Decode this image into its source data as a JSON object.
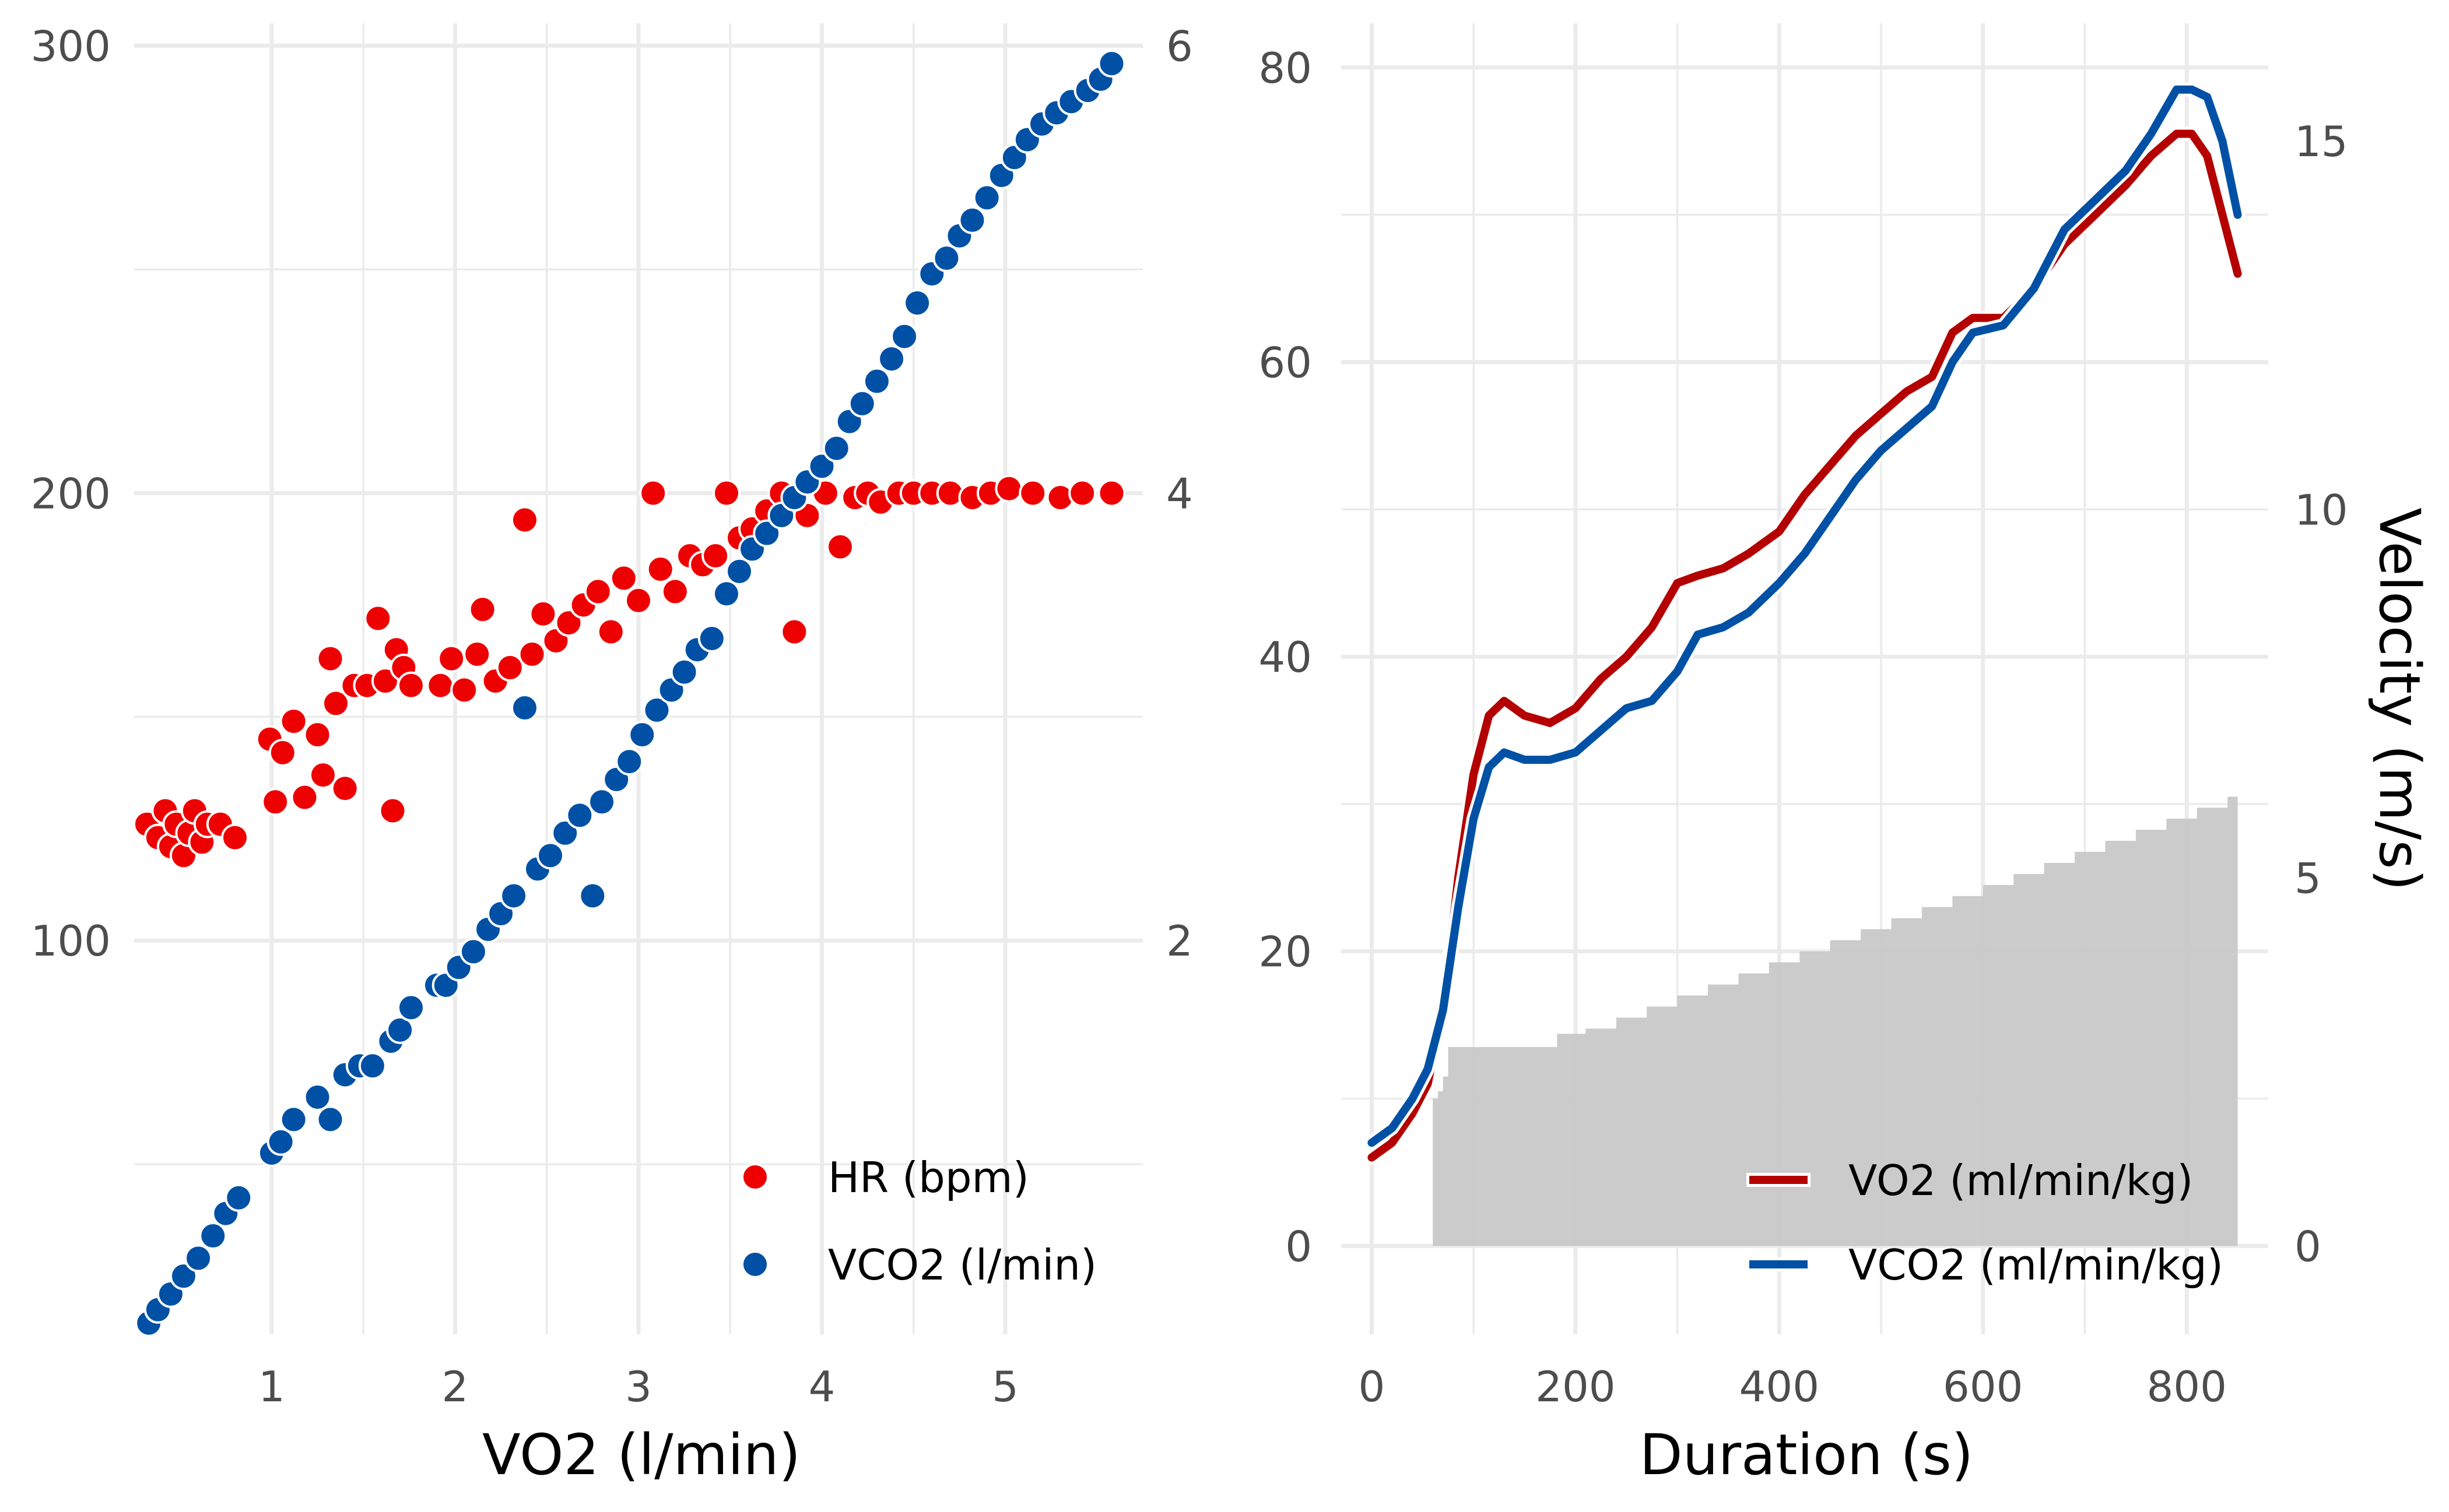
{
  "colors": {
    "hr": "#EE0000",
    "vco2_dots": "#0051A5",
    "vo2_line": "#B40000",
    "vco2_line": "#0051A5",
    "velocity_area": "#C8C8C8"
  },
  "chart_data": [
    {
      "type": "scatter",
      "xlabel": "VO2 (l/min)",
      "ylabel": "",
      "y2label": "",
      "xlim": [
        0.25,
        5.75
      ],
      "ylim": [
        12,
        305
      ],
      "y2lim": [
        0.24,
        6.1
      ],
      "xticks": [
        "1",
        "2",
        "3",
        "4",
        "5"
      ],
      "yticks": [
        "100",
        "200",
        "300"
      ],
      "y2ticks": [
        "2",
        "4",
        "6"
      ],
      "grid": true,
      "legend_position": "bottom-right",
      "series": [
        {
          "name": "HR (bpm)",
          "axis": "left",
          "color": "#EE0000",
          "points": [
            [
              0.32,
              126
            ],
            [
              0.38,
              123
            ],
            [
              0.42,
              129
            ],
            [
              0.45,
              121
            ],
            [
              0.48,
              126
            ],
            [
              0.52,
              119
            ],
            [
              0.55,
              124
            ],
            [
              0.58,
              129
            ],
            [
              0.62,
              122
            ],
            [
              0.65,
              126
            ],
            [
              0.72,
              126
            ],
            [
              0.8,
              123
            ],
            [
              0.99,
              145
            ],
            [
              1.02,
              131
            ],
            [
              1.06,
              142
            ],
            [
              1.12,
              149
            ],
            [
              1.18,
              132
            ],
            [
              1.25,
              146
            ],
            [
              1.28,
              137
            ],
            [
              1.32,
              163
            ],
            [
              1.35,
              153
            ],
            [
              1.4,
              134
            ],
            [
              1.45,
              157
            ],
            [
              1.52,
              157
            ],
            [
              1.58,
              172
            ],
            [
              1.62,
              158
            ],
            [
              1.66,
              129
            ],
            [
              1.68,
              165
            ],
            [
              1.72,
              161
            ],
            [
              1.76,
              157
            ],
            [
              1.92,
              157
            ],
            [
              1.98,
              163
            ],
            [
              2.05,
              156
            ],
            [
              2.12,
              164
            ],
            [
              2.15,
              174
            ],
            [
              2.22,
              158
            ],
            [
              2.3,
              161
            ],
            [
              2.38,
              194
            ],
            [
              2.42,
              164
            ],
            [
              2.48,
              173
            ],
            [
              2.55,
              167
            ],
            [
              2.62,
              171
            ],
            [
              2.7,
              175
            ],
            [
              2.78,
              178
            ],
            [
              2.85,
              169
            ],
            [
              2.92,
              181
            ],
            [
              3.0,
              176
            ],
            [
              3.08,
              200
            ],
            [
              3.12,
              183
            ],
            [
              3.2,
              178
            ],
            [
              3.28,
              186
            ],
            [
              3.35,
              184
            ],
            [
              3.42,
              186
            ],
            [
              3.48,
              200
            ],
            [
              3.55,
              190
            ],
            [
              3.62,
              192
            ],
            [
              3.7,
              196
            ],
            [
              3.78,
              200
            ],
            [
              3.85,
              169
            ],
            [
              3.92,
              195
            ],
            [
              4.02,
              200
            ],
            [
              4.1,
              188
            ],
            [
              4.18,
              199
            ],
            [
              4.25,
              200
            ],
            [
              4.32,
              198
            ],
            [
              4.42,
              200
            ],
            [
              4.5,
              200
            ],
            [
              4.6,
              200
            ],
            [
              4.7,
              200
            ],
            [
              4.82,
              199
            ],
            [
              4.92,
              200
            ],
            [
              5.02,
              201
            ],
            [
              5.15,
              200
            ],
            [
              5.3,
              199
            ],
            [
              5.42,
              200
            ],
            [
              5.58,
              200
            ]
          ]
        },
        {
          "name": "VCO2 (l/min)",
          "axis": "right",
          "color": "#0051A5",
          "points": [
            [
              0.33,
              0.29
            ],
            [
              0.38,
              0.35
            ],
            [
              0.45,
              0.42
            ],
            [
              0.52,
              0.5
            ],
            [
              0.6,
              0.58
            ],
            [
              0.68,
              0.68
            ],
            [
              0.75,
              0.78
            ],
            [
              0.82,
              0.85
            ],
            [
              1.0,
              1.05
            ],
            [
              1.05,
              1.1
            ],
            [
              1.12,
              1.2
            ],
            [
              1.25,
              1.3
            ],
            [
              1.32,
              1.2
            ],
            [
              1.4,
              1.4
            ],
            [
              1.48,
              1.44
            ],
            [
              1.55,
              1.44
            ],
            [
              1.65,
              1.55
            ],
            [
              1.7,
              1.6
            ],
            [
              1.76,
              1.7
            ],
            [
              1.9,
              1.8
            ],
            [
              1.95,
              1.8
            ],
            [
              2.02,
              1.88
            ],
            [
              2.1,
              1.95
            ],
            [
              2.18,
              2.05
            ],
            [
              2.25,
              2.12
            ],
            [
              2.32,
              2.2
            ],
            [
              2.38,
              3.04
            ],
            [
              2.45,
              2.32
            ],
            [
              2.52,
              2.38
            ],
            [
              2.6,
              2.48
            ],
            [
              2.68,
              2.56
            ],
            [
              2.75,
              2.2
            ],
            [
              2.8,
              2.62
            ],
            [
              2.88,
              2.72
            ],
            [
              2.95,
              2.8
            ],
            [
              3.02,
              2.92
            ],
            [
              3.1,
              3.03
            ],
            [
              3.18,
              3.12
            ],
            [
              3.25,
              3.2
            ],
            [
              3.32,
              3.3
            ],
            [
              3.4,
              3.35
            ],
            [
              3.48,
              3.55
            ],
            [
              3.55,
              3.65
            ],
            [
              3.62,
              3.75
            ],
            [
              3.7,
              3.82
            ],
            [
              3.78,
              3.9
            ],
            [
              3.85,
              3.98
            ],
            [
              3.92,
              4.05
            ],
            [
              4.0,
              4.12
            ],
            [
              4.08,
              4.2
            ],
            [
              4.15,
              4.32
            ],
            [
              4.22,
              4.4
            ],
            [
              4.3,
              4.5
            ],
            [
              4.38,
              4.6
            ],
            [
              4.45,
              4.7
            ],
            [
              4.52,
              4.85
            ],
            [
              4.6,
              4.98
            ],
            [
              4.68,
              5.05
            ],
            [
              4.75,
              5.15
            ],
            [
              4.82,
              5.22
            ],
            [
              4.9,
              5.32
            ],
            [
              4.98,
              5.42
            ],
            [
              5.05,
              5.5
            ],
            [
              5.12,
              5.58
            ],
            [
              5.2,
              5.65
            ],
            [
              5.28,
              5.7
            ],
            [
              5.36,
              5.75
            ],
            [
              5.45,
              5.8
            ],
            [
              5.52,
              5.85
            ],
            [
              5.58,
              5.92
            ]
          ]
        }
      ]
    },
    {
      "type": "line",
      "xlabel": "Duration (s)",
      "ylabel": "",
      "y2label": "Velocity (m/s)",
      "xlim": [
        -30,
        880
      ],
      "ylim": [
        -6,
        83
      ],
      "y2lim": [
        -1.2,
        16.6
      ],
      "xticks": [
        "0",
        "200",
        "400",
        "600",
        "800"
      ],
      "yticks": [
        "0",
        "20",
        "40",
        "60",
        "80"
      ],
      "y2ticks": [
        "0",
        "5",
        "10",
        "15"
      ],
      "grid": true,
      "legend_position": "bottom-right",
      "series": [
        {
          "name": "VO2 (ml/min/kg)",
          "axis": "left",
          "color": "#B40000",
          "points": [
            [
              0,
              6
            ],
            [
              20,
              7
            ],
            [
              40,
              9
            ],
            [
              55,
              11
            ],
            [
              70,
              16
            ],
            [
              85,
              25
            ],
            [
              100,
              32
            ],
            [
              115,
              36
            ],
            [
              130,
              37
            ],
            [
              150,
              36
            ],
            [
              175,
              35.5
            ],
            [
              200,
              36.5
            ],
            [
              225,
              38.5
            ],
            [
              250,
              40
            ],
            [
              275,
              42
            ],
            [
              300,
              45
            ],
            [
              320,
              45.5
            ],
            [
              345,
              46
            ],
            [
              370,
              47
            ],
            [
              400,
              48.5
            ],
            [
              425,
              51
            ],
            [
              450,
              53
            ],
            [
              475,
              55
            ],
            [
              500,
              56.5
            ],
            [
              525,
              58
            ],
            [
              550,
              59
            ],
            [
              570,
              62
            ],
            [
              590,
              63
            ],
            [
              620,
              63
            ],
            [
              650,
              65
            ],
            [
              680,
              68
            ],
            [
              710,
              70
            ],
            [
              740,
              72
            ],
            [
              765,
              74
            ],
            [
              790,
              75.5
            ],
            [
              805,
              75.5
            ],
            [
              820,
              74
            ],
            [
              835,
              70
            ],
            [
              850,
              66
            ]
          ]
        },
        {
          "name": "VCO2 (ml/min/kg)",
          "axis": "left",
          "color": "#0051A5",
          "points": [
            [
              0,
              7
            ],
            [
              20,
              8
            ],
            [
              40,
              10
            ],
            [
              55,
              12
            ],
            [
              70,
              16
            ],
            [
              85,
              23
            ],
            [
              100,
              29
            ],
            [
              115,
              32.5
            ],
            [
              130,
              33.5
            ],
            [
              150,
              33
            ],
            [
              175,
              33
            ],
            [
              200,
              33.5
            ],
            [
              225,
              35
            ],
            [
              250,
              36.5
            ],
            [
              275,
              37
            ],
            [
              300,
              39
            ],
            [
              320,
              41.5
            ],
            [
              345,
              42
            ],
            [
              370,
              43
            ],
            [
              400,
              45
            ],
            [
              425,
              47
            ],
            [
              450,
              49.5
            ],
            [
              475,
              52
            ],
            [
              500,
              54
            ],
            [
              525,
              55.5
            ],
            [
              550,
              57
            ],
            [
              570,
              60
            ],
            [
              590,
              62
            ],
            [
              620,
              62.5
            ],
            [
              650,
              65
            ],
            [
              680,
              69
            ],
            [
              710,
              71
            ],
            [
              740,
              73
            ],
            [
              765,
              75.5
            ],
            [
              790,
              78.5
            ],
            [
              805,
              78.5
            ],
            [
              820,
              78
            ],
            [
              835,
              75
            ],
            [
              850,
              70
            ]
          ]
        },
        {
          "name": "Velocity",
          "axis": "right",
          "type": "area",
          "color": "#C8C8C8",
          "steps": [
            [
              60,
              2.0
            ],
            [
              65,
              2.1
            ],
            [
              70,
              2.3
            ],
            [
              75,
              2.7
            ],
            [
              180,
              2.7
            ],
            [
              182,
              2.88
            ],
            [
              210,
              2.95
            ],
            [
              240,
              3.1
            ],
            [
              270,
              3.25
            ],
            [
              300,
              3.4
            ],
            [
              330,
              3.55
            ],
            [
              360,
              3.7
            ],
            [
              390,
              3.85
            ],
            [
              420,
              4.0
            ],
            [
              450,
              4.15
            ],
            [
              480,
              4.3
            ],
            [
              510,
              4.45
            ],
            [
              540,
              4.6
            ],
            [
              570,
              4.75
            ],
            [
              600,
              4.9
            ],
            [
              630,
              5.05
            ],
            [
              660,
              5.2
            ],
            [
              690,
              5.35
            ],
            [
              720,
              5.5
            ],
            [
              750,
              5.65
            ],
            [
              780,
              5.8
            ],
            [
              810,
              5.95
            ],
            [
              840,
              6.1
            ],
            [
              850,
              6.2
            ]
          ]
        }
      ]
    }
  ]
}
